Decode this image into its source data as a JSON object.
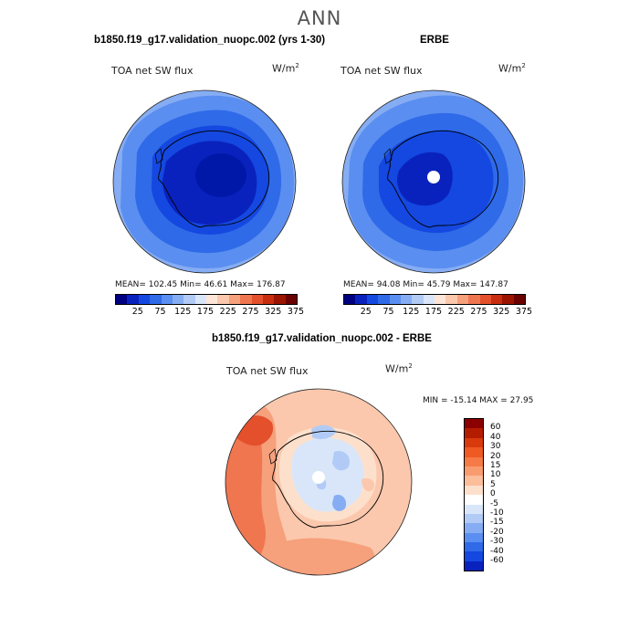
{
  "title": "ANN",
  "panels": {
    "model": {
      "title": "b1850.f19_g17.validation_nuopc.002 (yrs 1-30)",
      "variable": "TOA net SW flux",
      "units": "W/m",
      "units_exp": "2",
      "stats": "MEAN= 102.45   Min=   46.61   Max= 176.87"
    },
    "obs": {
      "title": "ERBE",
      "variable": "TOA net SW flux",
      "units": "W/m",
      "units_exp": "2",
      "stats": "MEAN=  94.08   Min=   45.79   Max= 147.87"
    },
    "diff": {
      "title": "b1850.f19_g17.validation_nuopc.002 - ERBE",
      "variable": "TOA net SW flux",
      "units": "W/m",
      "units_exp": "2",
      "stats": "MIN = -15.14 MAX =  27.95"
    }
  },
  "colorbar_abs": {
    "labels": [
      "25",
      "75",
      "125",
      "175",
      "225",
      "275",
      "325",
      "375"
    ],
    "colors": [
      "#000080",
      "#0a22bd",
      "#1448e0",
      "#2f6ae8",
      "#5a8ef0",
      "#86adf3",
      "#b1cbf6",
      "#d9e6fa",
      "#fde6d8",
      "#fbc8ad",
      "#f6a07c",
      "#f07650",
      "#e4502c",
      "#c82d10",
      "#9a1400",
      "#6b0000"
    ]
  },
  "colorbar_diff": {
    "labels": [
      "60",
      "40",
      "30",
      "20",
      "15",
      "10",
      "5",
      "0",
      "-5",
      "-10",
      "-15",
      "-20",
      "-30",
      "-40",
      "-60"
    ],
    "colors": [
      "#8b0000",
      "#b41c00",
      "#d83a0c",
      "#ee5a22",
      "#f57a46",
      "#f89c70",
      "#fbbd9a",
      "#fde0cc",
      "#ffffff",
      "#d9e6fa",
      "#b1cbf6",
      "#86adf3",
      "#5a8ef0",
      "#2f6ae8",
      "#1448e0",
      "#0a22bd"
    ]
  }
}
